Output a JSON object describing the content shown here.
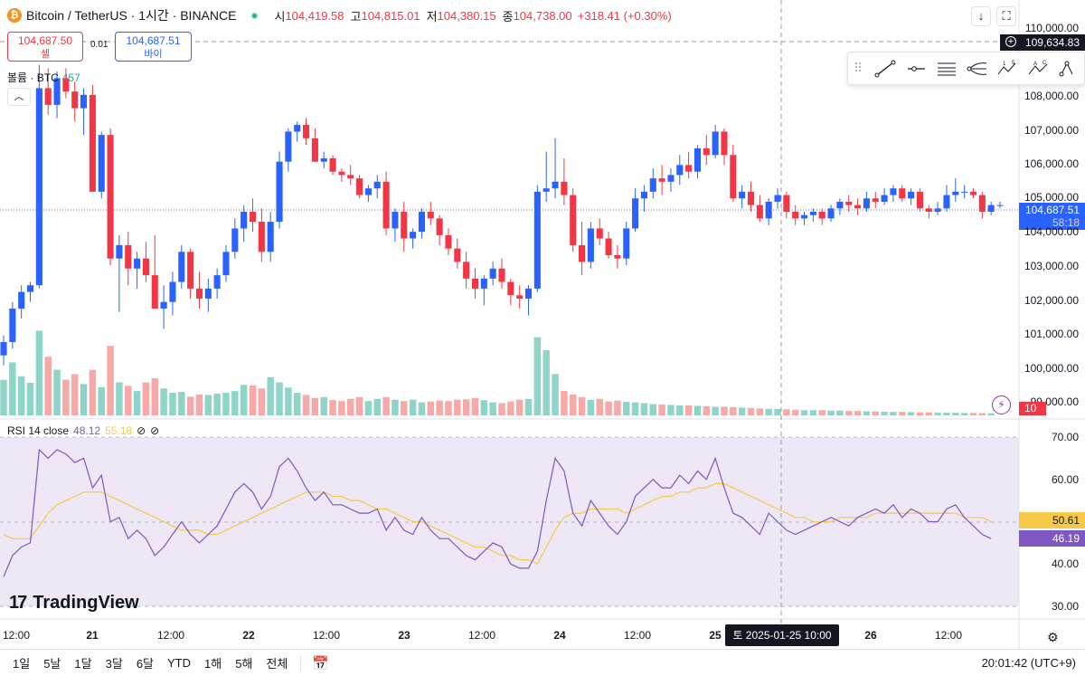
{
  "header": {
    "symbol": "Bitcoin / TetherUS · 1시간 · BINANCE",
    "coin_glyph": "₿",
    "open_label": "시",
    "open": "104,419.58",
    "high_label": "고",
    "high": "104,815.01",
    "low_label": "저",
    "low": "104,380.15",
    "close_label": "종",
    "close": "104,738.00",
    "change": "+318.41 (+0.30%)"
  },
  "trade": {
    "sell_price": "104,687.50",
    "sell_label": "셀",
    "spread": "0.01",
    "buy_price": "104,687.51",
    "buy_label": "바이"
  },
  "volume_legend": {
    "label": "볼륨 · BTC",
    "value": "457"
  },
  "rsi_legend": {
    "label": "RSI 14 close",
    "rsi": "48.12",
    "ma": "55.18",
    "icon1": "⊘",
    "icon2": "⊘"
  },
  "price_axis": {
    "labels": [
      "110,000.00",
      "108,000.00",
      "107,000.00",
      "106,000.00",
      "105,000.00",
      "104,000.00",
      "103,000.00",
      "102,000.00",
      "101,000.00",
      "100,000.00",
      "99,000.00"
    ],
    "crosshair_price": "109,634.83",
    "last_price": "104,687.51",
    "countdown": "58:18",
    "volume_tag": "10"
  },
  "rsi_axis": {
    "labels": [
      "70.00",
      "60.00",
      "40.00",
      "30.00"
    ],
    "ma_tag": "50.61",
    "rsi_tag": "46.19"
  },
  "time_axis": {
    "labels": [
      {
        "text": "12:00",
        "bold": false
      },
      {
        "text": "21",
        "bold": true
      },
      {
        "text": "12:00",
        "bold": false
      },
      {
        "text": "22",
        "bold": true
      },
      {
        "text": "12:00",
        "bold": false
      },
      {
        "text": "23",
        "bold": true
      },
      {
        "text": "12:00",
        "bold": false
      },
      {
        "text": "24",
        "bold": true
      },
      {
        "text": "12:00",
        "bold": false
      },
      {
        "text": "25",
        "bold": true
      },
      {
        "text": "26",
        "bold": true
      },
      {
        "text": "12:00",
        "bold": false
      }
    ],
    "crosshair_time": "토 2025-01-25   10:00"
  },
  "bottom_bar": {
    "ranges": [
      "1일",
      "5날",
      "1달",
      "3달",
      "6달",
      "YTD",
      "1해",
      "5해",
      "전체"
    ],
    "clock": "20:01:42 (UTC+9)"
  },
  "branding": {
    "mark": "17",
    "name": "TradingView"
  },
  "colors": {
    "up": "#22ab94",
    "down": "#f23645",
    "up_candle": "#2962ff",
    "down_candle": "#f23645",
    "rsi": "#7e57c2",
    "rsi_ma": "#f7c948",
    "rsi_band": "#ede7f6"
  },
  "chart_data": [
    {
      "type": "candlestick",
      "title": "Bitcoin / TetherUS · 1시간 · BINANCE",
      "ylim": [
        99000,
        110000
      ],
      "x_range": [
        "2025-01-20 12:00",
        "2025-01-26 18:00"
      ],
      "ohlc": [
        [
          100200,
          100800,
          99900,
          100600
        ],
        [
          100600,
          101800,
          100400,
          101600
        ],
        [
          101600,
          102300,
          101300,
          102100
        ],
        [
          102100,
          102400,
          101800,
          102300
        ],
        [
          102300,
          108900,
          102200,
          108200
        ],
        [
          108200,
          108800,
          107400,
          107700
        ],
        [
          107700,
          108700,
          107300,
          108500
        ],
        [
          108500,
          108800,
          107900,
          108100
        ],
        [
          108100,
          108400,
          107200,
          107600
        ],
        [
          107600,
          108200,
          106800,
          108000
        ],
        [
          108000,
          108300,
          105100,
          105100
        ],
        [
          105100,
          106900,
          104900,
          106800
        ],
        [
          106800,
          107000,
          102900,
          103100
        ],
        [
          103100,
          103800,
          101500,
          103500
        ],
        [
          103500,
          103900,
          102300,
          102800
        ],
        [
          102800,
          103300,
          102200,
          103100
        ],
        [
          103100,
          103600,
          102400,
          102600
        ],
        [
          102600,
          103800,
          101600,
          101600
        ],
        [
          101600,
          102300,
          101000,
          101800
        ],
        [
          101800,
          102700,
          101400,
          102400
        ],
        [
          102400,
          103500,
          102200,
          103300
        ],
        [
          103300,
          103400,
          101900,
          102200
        ],
        [
          102200,
          102700,
          101600,
          101900
        ],
        [
          101900,
          102500,
          101500,
          102200
        ],
        [
          102200,
          102800,
          101900,
          102600
        ],
        [
          102600,
          103500,
          102400,
          103300
        ],
        [
          103300,
          104300,
          103100,
          104000
        ],
        [
          104000,
          104700,
          103600,
          104500
        ],
        [
          104500,
          104900,
          103900,
          104200
        ],
        [
          104200,
          104600,
          103000,
          103300
        ],
        [
          103300,
          104500,
          103000,
          104200
        ],
        [
          104200,
          106300,
          104000,
          106000
        ],
        [
          106000,
          107000,
          105700,
          106900
        ],
        [
          106900,
          107200,
          106600,
          107100
        ],
        [
          107100,
          107300,
          106500,
          106700
        ],
        [
          106700,
          107000,
          106000,
          106000
        ],
        [
          106000,
          106300,
          105800,
          106100
        ],
        [
          106100,
          106200,
          105600,
          105700
        ],
        [
          105700,
          105800,
          105400,
          105600
        ],
        [
          105600,
          105900,
          105300,
          105500
        ],
        [
          105500,
          105600,
          104900,
          105000
        ],
        [
          105000,
          105300,
          104800,
          105200
        ],
        [
          105200,
          105600,
          104900,
          105400
        ],
        [
          105400,
          105700,
          103800,
          104000
        ],
        [
          104000,
          104600,
          103600,
          104500
        ],
        [
          104500,
          104800,
          103300,
          103700
        ],
        [
          103700,
          104000,
          103400,
          103900
        ],
        [
          103900,
          104600,
          103700,
          104500
        ],
        [
          104500,
          104800,
          104100,
          104300
        ],
        [
          104300,
          104400,
          103500,
          103800
        ],
        [
          103800,
          104000,
          103200,
          103400
        ],
        [
          103400,
          103700,
          102800,
          103000
        ],
        [
          103000,
          103300,
          102200,
          102500
        ],
        [
          102500,
          102800,
          101900,
          102200
        ],
        [
          102200,
          102600,
          101700,
          102500
        ],
        [
          102500,
          103000,
          102300,
          102800
        ],
        [
          102800,
          103100,
          102200,
          102400
        ],
        [
          102400,
          102500,
          101700,
          102000
        ],
        [
          102000,
          102300,
          101600,
          101900
        ],
        [
          101900,
          102300,
          101400,
          102200
        ],
        [
          102200,
          105300,
          102100,
          105100
        ],
        [
          105100,
          106300,
          104800,
          105200
        ],
        [
          105200,
          106700,
          104900,
          105400
        ],
        [
          105400,
          106100,
          104700,
          105000
        ],
        [
          105000,
          105200,
          103300,
          103500
        ],
        [
          103500,
          104200,
          102600,
          103000
        ],
        [
          103000,
          104200,
          102800,
          104000
        ],
        [
          104000,
          104300,
          103500,
          103700
        ],
        [
          103700,
          103900,
          103100,
          103200
        ],
        [
          103200,
          103500,
          102800,
          103100
        ],
        [
          103100,
          104200,
          102900,
          104000
        ],
        [
          104000,
          105200,
          103900,
          104900
        ],
        [
          104900,
          105300,
          104500,
          105100
        ],
        [
          105100,
          105800,
          104900,
          105500
        ],
        [
          105500,
          105900,
          105000,
          105400
        ],
        [
          105400,
          105800,
          105100,
          105600
        ],
        [
          105600,
          106200,
          105300,
          105900
        ],
        [
          105900,
          106300,
          105500,
          105700
        ],
        [
          105700,
          106500,
          105500,
          106400
        ],
        [
          106400,
          106800,
          105900,
          106200
        ],
        [
          106200,
          107100,
          106100,
          106900
        ],
        [
          106900,
          107000,
          105900,
          106200
        ],
        [
          106200,
          106500,
          104800,
          104900
        ],
        [
          104900,
          105300,
          104600,
          105100
        ],
        [
          105100,
          105400,
          104500,
          104700
        ],
        [
          104700,
          105000,
          104200,
          104300
        ],
        [
          104300,
          104900,
          104100,
          104800
        ],
        [
          104800,
          105200,
          104600,
          105000
        ],
        [
          105000,
          105100,
          104300,
          104500
        ],
        [
          104500,
          104700,
          104100,
          104300
        ],
        [
          104300,
          104500,
          104100,
          104400
        ],
        [
          104400,
          104600,
          104200,
          104500
        ],
        [
          104500,
          104600,
          104100,
          104300
        ],
        [
          104300,
          104700,
          104200,
          104600
        ],
        [
          104600,
          104900,
          104400,
          104800
        ],
        [
          104800,
          105000,
          104500,
          104700
        ],
        [
          104700,
          104900,
          104400,
          104600
        ],
        [
          104600,
          105100,
          104500,
          104900
        ],
        [
          104900,
          105100,
          104600,
          104800
        ],
        [
          104800,
          105200,
          104700,
          105000
        ],
        [
          105000,
          105300,
          104800,
          105200
        ],
        [
          105200,
          105300,
          104800,
          104900
        ],
        [
          104900,
          105200,
          104700,
          105100
        ],
        [
          105100,
          105200,
          104500,
          104600
        ],
        [
          104600,
          104700,
          104300,
          104500
        ],
        [
          104500,
          104800,
          104400,
          104600
        ],
        [
          104600,
          105300,
          104500,
          105000
        ],
        [
          105000,
          105500,
          104800,
          105100
        ],
        [
          105100,
          105300,
          104900,
          105100
        ],
        [
          105100,
          105200,
          104900,
          105000
        ],
        [
          105000,
          105100,
          104300,
          104500
        ],
        [
          104500,
          104800,
          104400,
          104700
        ],
        [
          104700,
          104800,
          104600,
          104700
        ]
      ]
    },
    {
      "type": "bar",
      "title": "볼륨 · BTC",
      "values": [
        820,
        1220,
        900,
        750,
        1950,
        1350,
        1050,
        820,
        950,
        720,
        1050,
        650,
        1600,
        760,
        680,
        560,
        760,
        850,
        620,
        520,
        540,
        430,
        480,
        470,
        500,
        520,
        560,
        700,
        690,
        620,
        880,
        760,
        640,
        520,
        470,
        400,
        420,
        350,
        330,
        380,
        420,
        330,
        380,
        420,
        360,
        330,
        360,
        300,
        320,
        340,
        330,
        360,
        370,
        400,
        350,
        300,
        280,
        320,
        360,
        380,
        1800,
        1500,
        950,
        560,
        480,
        420,
        360,
        380,
        320,
        340,
        310,
        300,
        280,
        260,
        250,
        240,
        230,
        230,
        220,
        210,
        200,
        200,
        190,
        180,
        170,
        160,
        150,
        150,
        140,
        130,
        120,
        120,
        120,
        110,
        110,
        100,
        100,
        95,
        90,
        85,
        80,
        80,
        75,
        70,
        70,
        65,
        60,
        60,
        55,
        55,
        50,
        50
      ],
      "ylim": [
        0,
        2500
      ]
    },
    {
      "type": "line",
      "title": "RSI 14 close",
      "ylim": [
        30,
        70
      ],
      "series": [
        {
          "name": "RSI",
          "values": [
            37,
            42,
            44,
            45,
            67,
            65,
            67,
            66,
            64,
            65,
            58,
            61,
            50,
            51,
            46,
            48,
            46,
            42,
            44,
            47,
            50,
            47,
            45,
            47,
            49,
            53,
            57,
            59,
            57,
            53,
            56,
            63,
            65,
            62,
            58,
            55,
            57,
            54,
            54,
            53,
            52,
            52,
            53,
            48,
            51,
            48,
            47,
            51,
            48,
            46,
            46,
            44,
            42,
            41,
            43,
            45,
            44,
            40,
            39,
            39,
            43,
            55,
            65,
            62,
            52,
            49,
            55,
            52,
            49,
            47,
            50,
            56,
            58,
            60,
            58,
            58,
            61,
            59,
            62,
            60,
            65,
            58,
            52,
            51,
            49,
            47,
            52,
            50,
            48,
            47,
            48,
            49,
            50,
            51,
            50,
            49,
            51,
            52,
            53,
            52,
            54,
            51,
            53,
            52,
            50,
            50,
            53,
            54,
            51,
            49,
            47,
            46
          ]
        },
        {
          "name": "MA",
          "values": [
            47,
            46,
            46,
            46,
            49,
            52,
            54,
            55,
            56,
            57,
            57,
            57,
            56,
            55,
            54,
            53,
            52,
            51,
            50,
            49,
            48,
            48,
            48,
            47,
            47,
            48,
            49,
            50,
            51,
            52,
            53,
            54,
            55,
            56,
            57,
            57,
            57,
            56,
            56,
            55,
            55,
            54,
            53,
            53,
            52,
            51,
            50,
            50,
            49,
            48,
            47,
            46,
            45,
            44,
            44,
            43,
            42,
            42,
            41,
            41,
            40,
            44,
            48,
            51,
            52,
            52,
            53,
            53,
            53,
            53,
            52,
            53,
            54,
            55,
            56,
            56,
            57,
            57,
            58,
            58,
            59,
            59,
            58,
            57,
            56,
            55,
            54,
            53,
            52,
            51,
            51,
            50,
            50,
            50,
            51,
            51,
            51,
            51,
            52,
            52,
            52,
            52,
            52,
            52,
            52,
            52,
            52,
            52,
            51,
            51,
            51,
            50
          ]
        }
      ]
    }
  ]
}
